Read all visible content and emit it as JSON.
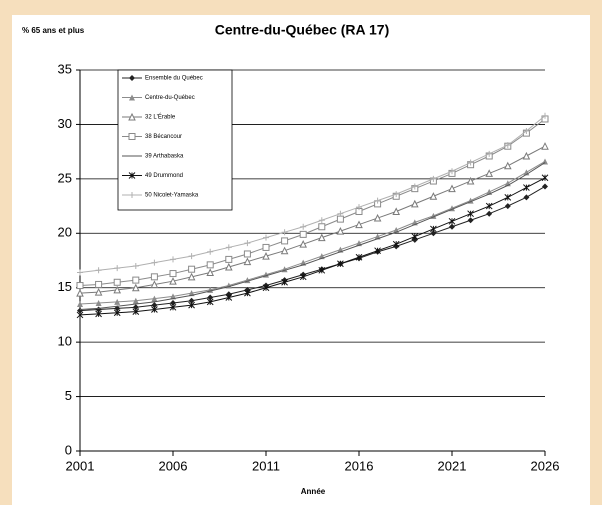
{
  "chart_data": {
    "type": "line",
    "title": "Centre-du-Québec (RA 17)",
    "y_label": "% 65 ans et plus",
    "x_label": "Année",
    "x": [
      2001,
      2002,
      2003,
      2004,
      2005,
      2006,
      2007,
      2008,
      2009,
      2010,
      2011,
      2012,
      2013,
      2014,
      2015,
      2016,
      2017,
      2018,
      2019,
      2020,
      2021,
      2022,
      2023,
      2024,
      2025,
      2026
    ],
    "xlim": [
      2001,
      2026
    ],
    "xticks": [
      2001,
      2006,
      2011,
      2016,
      2021,
      2026
    ],
    "ylim": [
      0,
      35
    ],
    "yticks": [
      0,
      5,
      10,
      15,
      20,
      25,
      30,
      35
    ],
    "grid": true,
    "legend": "upper left",
    "series": [
      {
        "name": "Ensemble du Québec",
        "color": "#222222",
        "marker": "diamond",
        "values": [
          12.9,
          13.0,
          13.1,
          13.2,
          13.4,
          13.6,
          13.8,
          14.1,
          14.4,
          14.8,
          15.2,
          15.7,
          16.2,
          16.7,
          17.2,
          17.7,
          18.3,
          18.8,
          19.4,
          20.0,
          20.6,
          21.2,
          21.8,
          22.5,
          23.3,
          24.3
        ]
      },
      {
        "name": "Centre-du-Québec",
        "color": "#8c8c8c",
        "marker": "triangle",
        "values": [
          13.5,
          13.6,
          13.7,
          13.8,
          14.0,
          14.2,
          14.5,
          14.8,
          15.2,
          15.7,
          16.2,
          16.7,
          17.3,
          17.9,
          18.5,
          19.1,
          19.7,
          20.3,
          21.0,
          21.6,
          22.3,
          23.0,
          23.8,
          24.6,
          25.6,
          26.6
        ]
      },
      {
        "name": "32 L'Érable",
        "color": "#7a7a7a",
        "marker": "open-triangle",
        "values": [
          14.5,
          14.6,
          14.8,
          15.0,
          15.3,
          15.6,
          16.0,
          16.4,
          16.9,
          17.4,
          17.9,
          18.4,
          19.0,
          19.6,
          20.2,
          20.8,
          21.4,
          22.0,
          22.7,
          23.4,
          24.1,
          24.8,
          25.5,
          26.2,
          27.1,
          28.0
        ]
      },
      {
        "name": "38 Bécancour",
        "color": "#8a8a8a",
        "marker": "open-square",
        "values": [
          15.2,
          15.3,
          15.5,
          15.7,
          16.0,
          16.3,
          16.7,
          17.1,
          17.6,
          18.1,
          18.7,
          19.3,
          19.9,
          20.6,
          21.3,
          22.0,
          22.7,
          23.4,
          24.1,
          24.8,
          25.5,
          26.3,
          27.1,
          28.0,
          29.2,
          30.5
        ]
      },
      {
        "name": "39 Arthabaska",
        "color": "#555555",
        "marker": "none",
        "values": [
          13.0,
          13.1,
          13.3,
          13.5,
          13.7,
          14.0,
          14.3,
          14.7,
          15.1,
          15.6,
          16.1,
          16.6,
          17.1,
          17.7,
          18.3,
          18.9,
          19.5,
          20.1,
          20.8,
          21.5,
          22.2,
          22.9,
          23.6,
          24.4,
          25.4,
          26.5
        ]
      },
      {
        "name": "49 Drummond",
        "color": "#111111",
        "marker": "star",
        "values": [
          12.5,
          12.6,
          12.7,
          12.8,
          13.0,
          13.2,
          13.4,
          13.7,
          14.1,
          14.5,
          15.0,
          15.5,
          16.0,
          16.6,
          17.2,
          17.8,
          18.4,
          19.0,
          19.7,
          20.4,
          21.1,
          21.8,
          22.5,
          23.3,
          24.2,
          25.1
        ]
      },
      {
        "name": "50 Nicolet-Yamaska",
        "color": "#b0b0b0",
        "marker": "plus",
        "values": [
          16.4,
          16.6,
          16.8,
          17.0,
          17.3,
          17.6,
          17.9,
          18.3,
          18.7,
          19.1,
          19.6,
          20.1,
          20.6,
          21.2,
          21.8,
          22.4,
          23.0,
          23.6,
          24.3,
          25.0,
          25.7,
          26.5,
          27.3,
          28.1,
          29.4,
          30.8
        ]
      }
    ]
  }
}
